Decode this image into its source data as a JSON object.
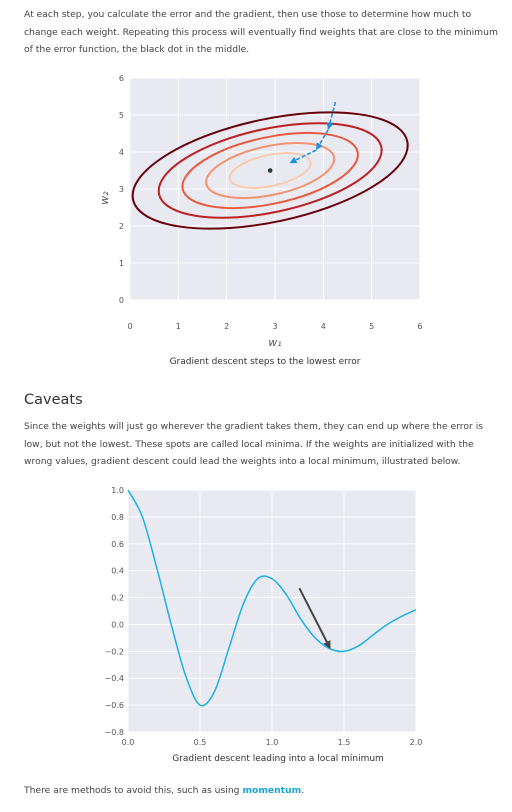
{
  "intro": {
    "text": "At each step, you calculate the error and the gradient, then use those to determine how much to change each weight. Repeating this process will eventually find weights that are close to the minimum of the error function, the black dot in the middle."
  },
  "caveats": {
    "heading": "Caveats",
    "text": "Since the weights will just go wherever the gradient takes them, they can end up where the error is low, but not the lowest. These spots are called local minima. If the weights are initialized with the wrong values, gradient descent could lead the weights into a local minimum, illustrated below."
  },
  "outro": {
    "text": "There are methods to avoid this, such as using ",
    "link_label": "momentum",
    "after": "."
  },
  "chart_data": [
    {
      "type": "contour",
      "caption": "Gradient descent steps to the lowest error",
      "xlabel": "w₁",
      "ylabel": "w₂",
      "xlim": [
        0,
        6
      ],
      "ylim": [
        0,
        6
      ],
      "x_ticks": [
        "0",
        "1",
        "2",
        "3",
        "4",
        "5",
        "6"
      ],
      "y_ticks": [
        "0",
        "1",
        "2",
        "3",
        "4",
        "5",
        "6"
      ],
      "minimum": [
        2.9,
        3.5
      ],
      "contour_levels": [
        {
          "rx": 0.85,
          "ry": 0.42,
          "color": "#fcc9ad"
        },
        {
          "rx": 1.35,
          "ry": 0.66,
          "color": "#f59271"
        },
        {
          "rx": 1.85,
          "ry": 0.9,
          "color": "#e85a3f"
        },
        {
          "rx": 2.35,
          "ry": 1.13,
          "color": "#bc2124"
        },
        {
          "rx": 2.9,
          "ry": 1.39,
          "color": "#67000d"
        }
      ],
      "descent_steps": [
        [
          4.25,
          5.35
        ],
        [
          4.1,
          4.6
        ],
        [
          3.85,
          4.05
        ],
        [
          3.3,
          3.7
        ]
      ],
      "grid": true,
      "colors": {
        "background": "#e9e9f2",
        "steps": "#1e90e0",
        "minimum": "#2b3a3a"
      }
    },
    {
      "type": "line",
      "caption": "Gradient descent leading into a local minimum",
      "xlim": [
        0,
        2
      ],
      "ylim": [
        -0.8,
        1
      ],
      "x_ticks": [
        "0.0",
        "0.5",
        "1.0",
        "1.5",
        "2.0"
      ],
      "y_ticks": [
        "−0.8",
        "−0.6",
        "−0.4",
        "−0.2",
        "0.0",
        "0.2",
        "0.4",
        "0.6",
        "0.8",
        "1.0"
      ],
      "x": [
        0,
        0.1,
        0.2,
        0.3,
        0.4,
        0.5,
        0.6,
        0.7,
        0.8,
        0.9,
        1.0,
        1.1,
        1.2,
        1.3,
        1.4,
        1.5,
        1.6,
        1.7,
        1.8,
        1.9,
        2.0
      ],
      "y": [
        1.0,
        0.8,
        0.42,
        0.0,
        -0.38,
        -0.6,
        -0.5,
        -0.18,
        0.15,
        0.34,
        0.34,
        0.22,
        0.04,
        -0.1,
        -0.18,
        -0.2,
        -0.16,
        -0.08,
        0.0,
        0.06,
        0.11
      ],
      "arrow": {
        "from": [
          1.19,
          0.27
        ],
        "to": [
          1.4,
          -0.17
        ]
      },
      "grid": true,
      "colors": {
        "background": "#e9e9f2",
        "line": "#19b2e3",
        "arrow": "#444444"
      }
    }
  ]
}
